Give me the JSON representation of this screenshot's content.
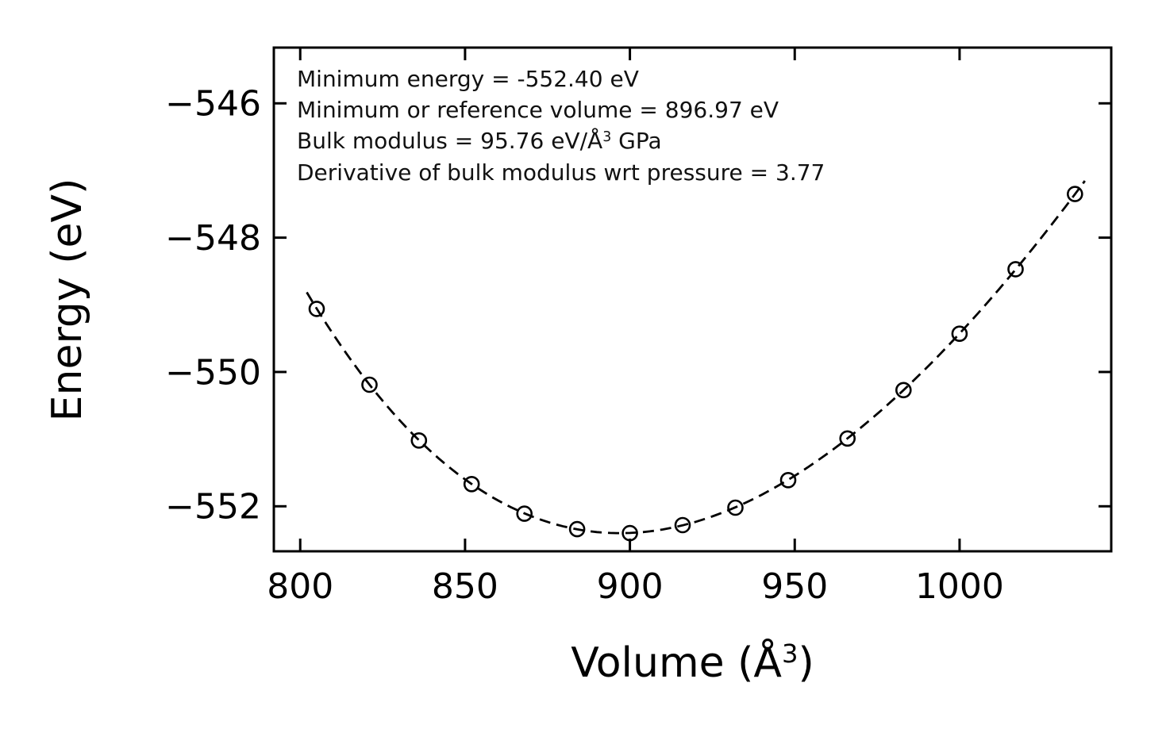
{
  "figure": {
    "background": "#ffffff",
    "axis_color": "#000000",
    "line_color": "#000000",
    "marker_style": "open-circle"
  },
  "annotations": {
    "line1": "Minimum energy = -552.40 eV",
    "line2": "Minimum or reference volume = 896.97 eV",
    "line3_pre": "Bulk modulus = 95.76 eV/Å",
    "line3_sup": "3",
    "line3_post": " GPa",
    "line4": "Derivative of bulk modulus wrt pressure = 3.77"
  },
  "axes": {
    "x": {
      "label_pre": "Volume (Å",
      "label_sup": "3",
      "label_post": ")",
      "ticks": [
        {
          "value": 800,
          "label": "800"
        },
        {
          "value": 850,
          "label": "850"
        },
        {
          "value": 900,
          "label": "900"
        },
        {
          "value": 950,
          "label": "950"
        },
        {
          "value": 1000,
          "label": "1000"
        }
      ],
      "lim": [
        792,
        1046
      ]
    },
    "y": {
      "label": "Energy (eV)",
      "ticks": [
        {
          "value": -546,
          "label": "−546"
        },
        {
          "value": -548,
          "label": "−548"
        },
        {
          "value": -550,
          "label": "−550"
        },
        {
          "value": -552,
          "label": "−552"
        }
      ],
      "lim": [
        -552.67,
        -545.17
      ]
    }
  },
  "chart_data": {
    "type": "scatter",
    "title": "",
    "xlabel": "Volume (Å³)",
    "ylabel": "Energy (eV)",
    "x": [
      805,
      821,
      836,
      852,
      868,
      884,
      900,
      916,
      932,
      948,
      966,
      983,
      1000,
      1017,
      1035
    ],
    "y": [
      -549.06,
      -550.19,
      -551.02,
      -551.67,
      -552.11,
      -552.34,
      -552.4,
      -552.28,
      -552.02,
      -551.61,
      -550.99,
      -550.27,
      -549.43,
      -548.47,
      -547.35
    ],
    "fit_curve": {
      "model": "birch-murnaghan",
      "E0_eV": -552.4,
      "V0_A3": 896.97,
      "B0_GPa": 95.76,
      "B0_prime": 3.77,
      "line_style": "dashed",
      "v_range": [
        802,
        1038
      ]
    },
    "xlim": [
      792,
      1046
    ],
    "ylim": [
      -552.67,
      -545.17
    ],
    "x_ticks": [
      800,
      850,
      900,
      950,
      1000
    ],
    "y_ticks": [
      -546,
      -548,
      -550,
      -552
    ],
    "grid": false,
    "legend": false
  }
}
